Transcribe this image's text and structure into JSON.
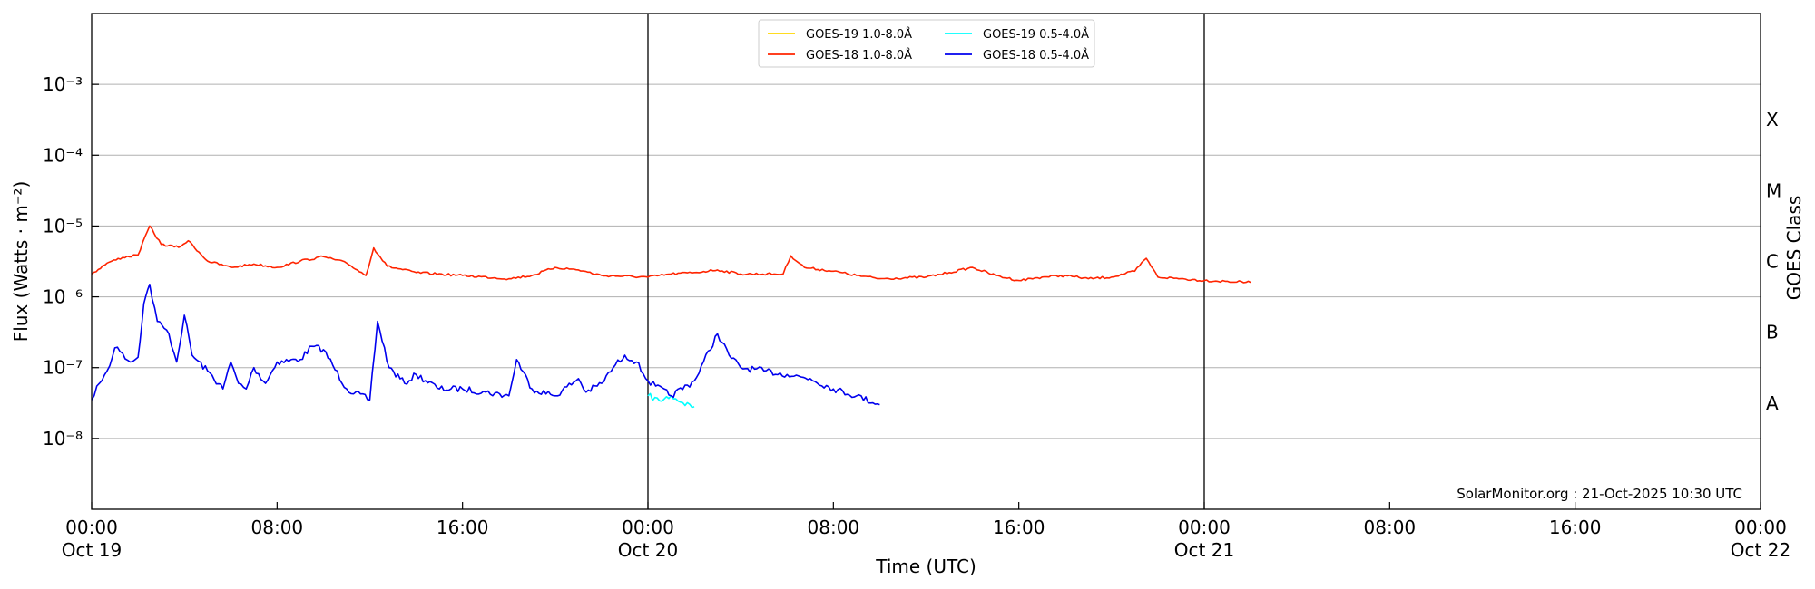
{
  "chart_data": {
    "type": "line",
    "ylabel": "Flux (Watts · m⁻²)",
    "xlabel": "Time (UTC)",
    "y_scale": "log",
    "ylim": [
      1e-09,
      0.01
    ],
    "xlim": [
      "2025-10-19 00:00",
      "2025-10-22 00:00"
    ],
    "y_ticks": [
      {
        "value": 1e-08,
        "label": "10⁻⁸"
      },
      {
        "value": 1e-07,
        "label": "10⁻⁷"
      },
      {
        "value": 1e-06,
        "label": "10⁻⁶"
      },
      {
        "value": 1e-05,
        "label": "10⁻⁵"
      },
      {
        "value": 0.0001,
        "label": "10⁻⁴"
      },
      {
        "value": 0.001,
        "label": "10⁻³"
      }
    ],
    "x_ticks": [
      {
        "time": "2025-10-19 00:00",
        "line1": "00:00",
        "line2": "Oct 19"
      },
      {
        "time": "2025-10-19 08:00",
        "line1": "08:00",
        "line2": ""
      },
      {
        "time": "2025-10-19 16:00",
        "line1": "16:00",
        "line2": ""
      },
      {
        "time": "2025-10-20 00:00",
        "line1": "00:00",
        "line2": "Oct 20"
      },
      {
        "time": "2025-10-20 08:00",
        "line1": "08:00",
        "line2": ""
      },
      {
        "time": "2025-10-20 16:00",
        "line1": "16:00",
        "line2": ""
      },
      {
        "time": "2025-10-21 00:00",
        "line1": "00:00",
        "line2": "Oct 21"
      },
      {
        "time": "2025-10-21 08:00",
        "line1": "08:00",
        "line2": ""
      },
      {
        "time": "2025-10-21 16:00",
        "line1": "16:00",
        "line2": ""
      },
      {
        "time": "2025-10-22 00:00",
        "line1": "00:00",
        "line2": "Oct 22"
      }
    ],
    "day_boundaries": [
      "2025-10-20 00:00",
      "2025-10-21 00:00"
    ],
    "grid": "horizontal",
    "right_axis": {
      "label": "GOES Class",
      "classes": [
        {
          "label": "A",
          "value": 3.16e-08
        },
        {
          "label": "B",
          "value": 3.16e-07
        },
        {
          "label": "C",
          "value": 3.16e-06
        },
        {
          "label": "M",
          "value": 3.16e-05
        },
        {
          "label": "X",
          "value": 0.000316
        }
      ]
    },
    "legend": {
      "placement": "top-center",
      "entries": [
        {
          "name": "GOES-19 1.0-8.0Å",
          "color": "#ffd700"
        },
        {
          "name": "GOES-19 0.5-4.0Å",
          "color": "#00ffff"
        },
        {
          "name": "GOES-18 1.0-8.0Å",
          "color": "#ff2400"
        },
        {
          "name": "GOES-18 0.5-4.0Å",
          "color": "#0000ee"
        }
      ]
    },
    "credit": "SolarMonitor.org : 21-Oct-2025 10:30 UTC",
    "series": [
      {
        "name": "GOES-18 1.0-8.0Å",
        "color": "#ff2400",
        "points": [
          [
            "2025-10-19 00:00",
            2.1e-06
          ],
          [
            "2025-10-19 00:40",
            3e-06
          ],
          [
            "2025-10-19 01:20",
            3.6e-06
          ],
          [
            "2025-10-19 02:00",
            3.9e-06
          ],
          [
            "2025-10-19 02:30",
            1e-05
          ],
          [
            "2025-10-19 03:00",
            5.5e-06
          ],
          [
            "2025-10-19 03:45",
            5e-06
          ],
          [
            "2025-10-19 04:10",
            6.2e-06
          ],
          [
            "2025-10-19 05:00",
            3.2e-06
          ],
          [
            "2025-10-19 06:00",
            2.6e-06
          ],
          [
            "2025-10-19 07:00",
            2.9e-06
          ],
          [
            "2025-10-19 08:00",
            2.6e-06
          ],
          [
            "2025-10-19 09:00",
            3.2e-06
          ],
          [
            "2025-10-19 10:00",
            3.7e-06
          ],
          [
            "2025-10-19 11:00",
            3e-06
          ],
          [
            "2025-10-19 11:50",
            2e-06
          ],
          [
            "2025-10-19 12:10",
            4.9e-06
          ],
          [
            "2025-10-19 12:45",
            2.7e-06
          ],
          [
            "2025-10-19 14:00",
            2.2e-06
          ],
          [
            "2025-10-19 16:00",
            2e-06
          ],
          [
            "2025-10-19 18:00",
            1.8e-06
          ],
          [
            "2025-10-19 19:00",
            2e-06
          ],
          [
            "2025-10-19 20:00",
            2.6e-06
          ],
          [
            "2025-10-19 21:00",
            2.4e-06
          ],
          [
            "2025-10-19 22:00",
            2e-06
          ],
          [
            "2025-10-19 24:00",
            1.9e-06
          ],
          [
            "2025-10-19 25:00",
            2.1e-06
          ],
          [
            "2025-10-19 26:00",
            2.2e-06
          ],
          [
            "2025-10-19 27:00",
            2.4e-06
          ],
          [
            "2025-10-19 28:00",
            2.1e-06
          ],
          [
            "2025-10-19 29:50",
            2.1e-06
          ],
          [
            "2025-10-19 30:10",
            3.8e-06
          ],
          [
            "2025-10-19 30:45",
            2.6e-06
          ],
          [
            "2025-10-19 32:00",
            2.3e-06
          ],
          [
            "2025-10-19 33:00",
            2e-06
          ],
          [
            "2025-10-19 34:00",
            1.8e-06
          ],
          [
            "2025-10-19 36:00",
            1.9e-06
          ],
          [
            "2025-10-19 37:00",
            2.2e-06
          ],
          [
            "2025-10-19 38:00",
            2.6e-06
          ],
          [
            "2025-10-19 39:00",
            2e-06
          ],
          [
            "2025-10-19 40:00",
            1.7e-06
          ],
          [
            "2025-10-19 41:00",
            1.9e-06
          ],
          [
            "2025-10-19 42:00",
            2e-06
          ],
          [
            "2025-10-19 43:00",
            1.8e-06
          ],
          [
            "2025-10-19 44:00",
            1.9e-06
          ],
          [
            "2025-10-19 45:00",
            2.3e-06
          ],
          [
            "2025-10-19 45:30",
            3.5e-06
          ],
          [
            "2025-10-19 46:00",
            1.9e-06
          ],
          [
            "2025-10-19 47:00",
            1.8e-06
          ],
          [
            "2025-10-19 48:00",
            1.7e-06
          ],
          [
            "2025-10-19 50:00",
            1.6e-06
          ]
        ]
      },
      {
        "name": "GOES-18 0.5-4.0Å",
        "color": "#0000ee",
        "points": [
          [
            "2025-10-19 00:00",
            3.5e-08
          ],
          [
            "2025-10-19 00:20",
            6e-08
          ],
          [
            "2025-10-19 00:40",
            9e-08
          ],
          [
            "2025-10-19 01:00",
            1.9e-07
          ],
          [
            "2025-10-19 01:20",
            1.6e-07
          ],
          [
            "2025-10-19 01:40",
            1.2e-07
          ],
          [
            "2025-10-19 02:00",
            1.4e-07
          ],
          [
            "2025-10-19 02:15",
            8e-07
          ],
          [
            "2025-10-19 02:30",
            1.5e-06
          ],
          [
            "2025-10-19 02:50",
            4.5e-07
          ],
          [
            "2025-10-19 03:20",
            3e-07
          ],
          [
            "2025-10-19 03:40",
            1.2e-07
          ],
          [
            "2025-10-19 04:00",
            5.5e-07
          ],
          [
            "2025-10-19 04:20",
            1.5e-07
          ],
          [
            "2025-10-19 05:00",
            9e-08
          ],
          [
            "2025-10-19 05:40",
            5e-08
          ],
          [
            "2025-10-19 06:00",
            1.2e-07
          ],
          [
            "2025-10-19 06:20",
            6e-08
          ],
          [
            "2025-10-19 06:40",
            5e-08
          ],
          [
            "2025-10-19 07:00",
            1e-07
          ],
          [
            "2025-10-19 07:30",
            6e-08
          ],
          [
            "2025-10-19 08:00",
            1.2e-07
          ],
          [
            "2025-10-19 09:00",
            1.3e-07
          ],
          [
            "2025-10-19 09:30",
            2e-07
          ],
          [
            "2025-10-19 10:00",
            1.8e-07
          ],
          [
            "2025-10-19 11:00",
            5e-08
          ],
          [
            "2025-10-19 12:00",
            3.5e-08
          ],
          [
            "2025-10-19 12:20",
            4.5e-07
          ],
          [
            "2025-10-19 12:50",
            1e-07
          ],
          [
            "2025-10-19 13:30",
            6e-08
          ],
          [
            "2025-10-19 14:00",
            8e-08
          ],
          [
            "2025-10-19 15:00",
            5e-08
          ],
          [
            "2025-10-19 16:00",
            5e-08
          ],
          [
            "2025-10-19 17:00",
            4.5e-08
          ],
          [
            "2025-10-19 18:00",
            4e-08
          ],
          [
            "2025-10-19 18:20",
            1.3e-07
          ],
          [
            "2025-10-19 19:00",
            5e-08
          ],
          [
            "2025-10-19 20:00",
            4e-08
          ],
          [
            "2025-10-19 21:00",
            7e-08
          ],
          [
            "2025-10-19 21:20",
            4.5e-08
          ],
          [
            "2025-10-19 22:00",
            6e-08
          ],
          [
            "2025-10-19 22:30",
            1e-07
          ],
          [
            "2025-10-19 23:00",
            1.5e-07
          ],
          [
            "2025-10-19 23:30",
            1.2e-07
          ],
          [
            "2025-10-20 00:00",
            6.5e-08
          ],
          [
            "2025-10-20 00:20",
            5.5e-08
          ],
          [
            "2025-10-20 01:00",
            4e-08
          ],
          [
            "2025-10-20 02:00",
            6.5e-08
          ],
          [
            "2025-10-20 03:00",
            3e-07
          ],
          [
            "2025-10-20 03:30",
            1.5e-07
          ],
          [
            "2025-10-20 04:00",
            1e-07
          ],
          [
            "2025-10-20 05:00",
            9e-08
          ],
          [
            "2025-10-20 06:00",
            8e-08
          ],
          [
            "2025-10-20 07:00",
            7e-08
          ],
          [
            "2025-10-20 08:00",
            5e-08
          ],
          [
            "2025-10-20 09:00",
            4e-08
          ],
          [
            "2025-10-20 10:00",
            3e-08
          ]
        ]
      },
      {
        "name": "GOES-19 0.5-4.0Å",
        "color": "#00ffff",
        "points": [
          [
            "2025-10-20 00:00",
            4e-08
          ],
          [
            "2025-10-20 00:30",
            3.4e-08
          ],
          [
            "2025-10-20 01:00",
            4e-08
          ],
          [
            "2025-10-20 01:30",
            3.2e-08
          ],
          [
            "2025-10-20 02:00",
            2.8e-08
          ]
        ]
      },
      {
        "name": "GOES-19 1.0-8.0Å",
        "color": "#ffd700",
        "points": []
      }
    ]
  }
}
